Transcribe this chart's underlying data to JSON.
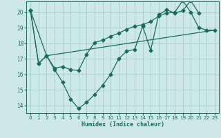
{
  "title": "",
  "xlabel": "Humidex (Indice chaleur)",
  "ylabel": "",
  "bg_color": "#cde8e8",
  "grid_color": "#aacccc",
  "line_color": "#1a6b5a",
  "xlim": [
    -0.5,
    23.5
  ],
  "ylim": [
    13.5,
    20.7
  ],
  "yticks": [
    14,
    15,
    16,
    17,
    18,
    19,
    20
  ],
  "xticks": [
    0,
    1,
    2,
    3,
    4,
    5,
    6,
    7,
    8,
    9,
    10,
    11,
    12,
    13,
    14,
    15,
    16,
    17,
    18,
    19,
    20,
    21,
    22,
    23
  ],
  "line1_x": [
    0,
    1,
    2,
    3,
    4,
    5,
    6,
    7,
    8,
    9,
    10,
    11,
    12,
    13,
    14,
    15,
    16,
    17,
    18,
    19,
    20,
    21,
    22,
    23
  ],
  "line1_y": [
    20.1,
    16.7,
    17.2,
    16.3,
    15.5,
    14.4,
    13.8,
    14.2,
    14.7,
    15.3,
    16.0,
    17.0,
    17.5,
    17.6,
    19.1,
    17.55,
    19.85,
    20.15,
    19.95,
    20.1,
    20.75,
    19.95,
    null,
    null
  ],
  "line2_x": [
    0,
    1,
    2,
    3,
    4,
    5,
    6,
    7,
    8,
    9,
    10,
    11,
    12,
    13,
    14,
    15,
    16,
    17,
    18,
    19,
    20,
    21,
    22,
    23
  ],
  "line2_y": [
    20.1,
    16.7,
    17.2,
    16.4,
    16.5,
    16.3,
    16.25,
    17.3,
    18.05,
    18.2,
    18.45,
    18.65,
    18.9,
    19.1,
    19.2,
    19.4,
    19.75,
    19.95,
    20.0,
    20.75,
    20.0,
    19.0,
    18.85,
    18.85
  ],
  "line3_x": [
    0,
    2,
    23
  ],
  "line3_y": [
    20.1,
    17.2,
    18.85
  ]
}
